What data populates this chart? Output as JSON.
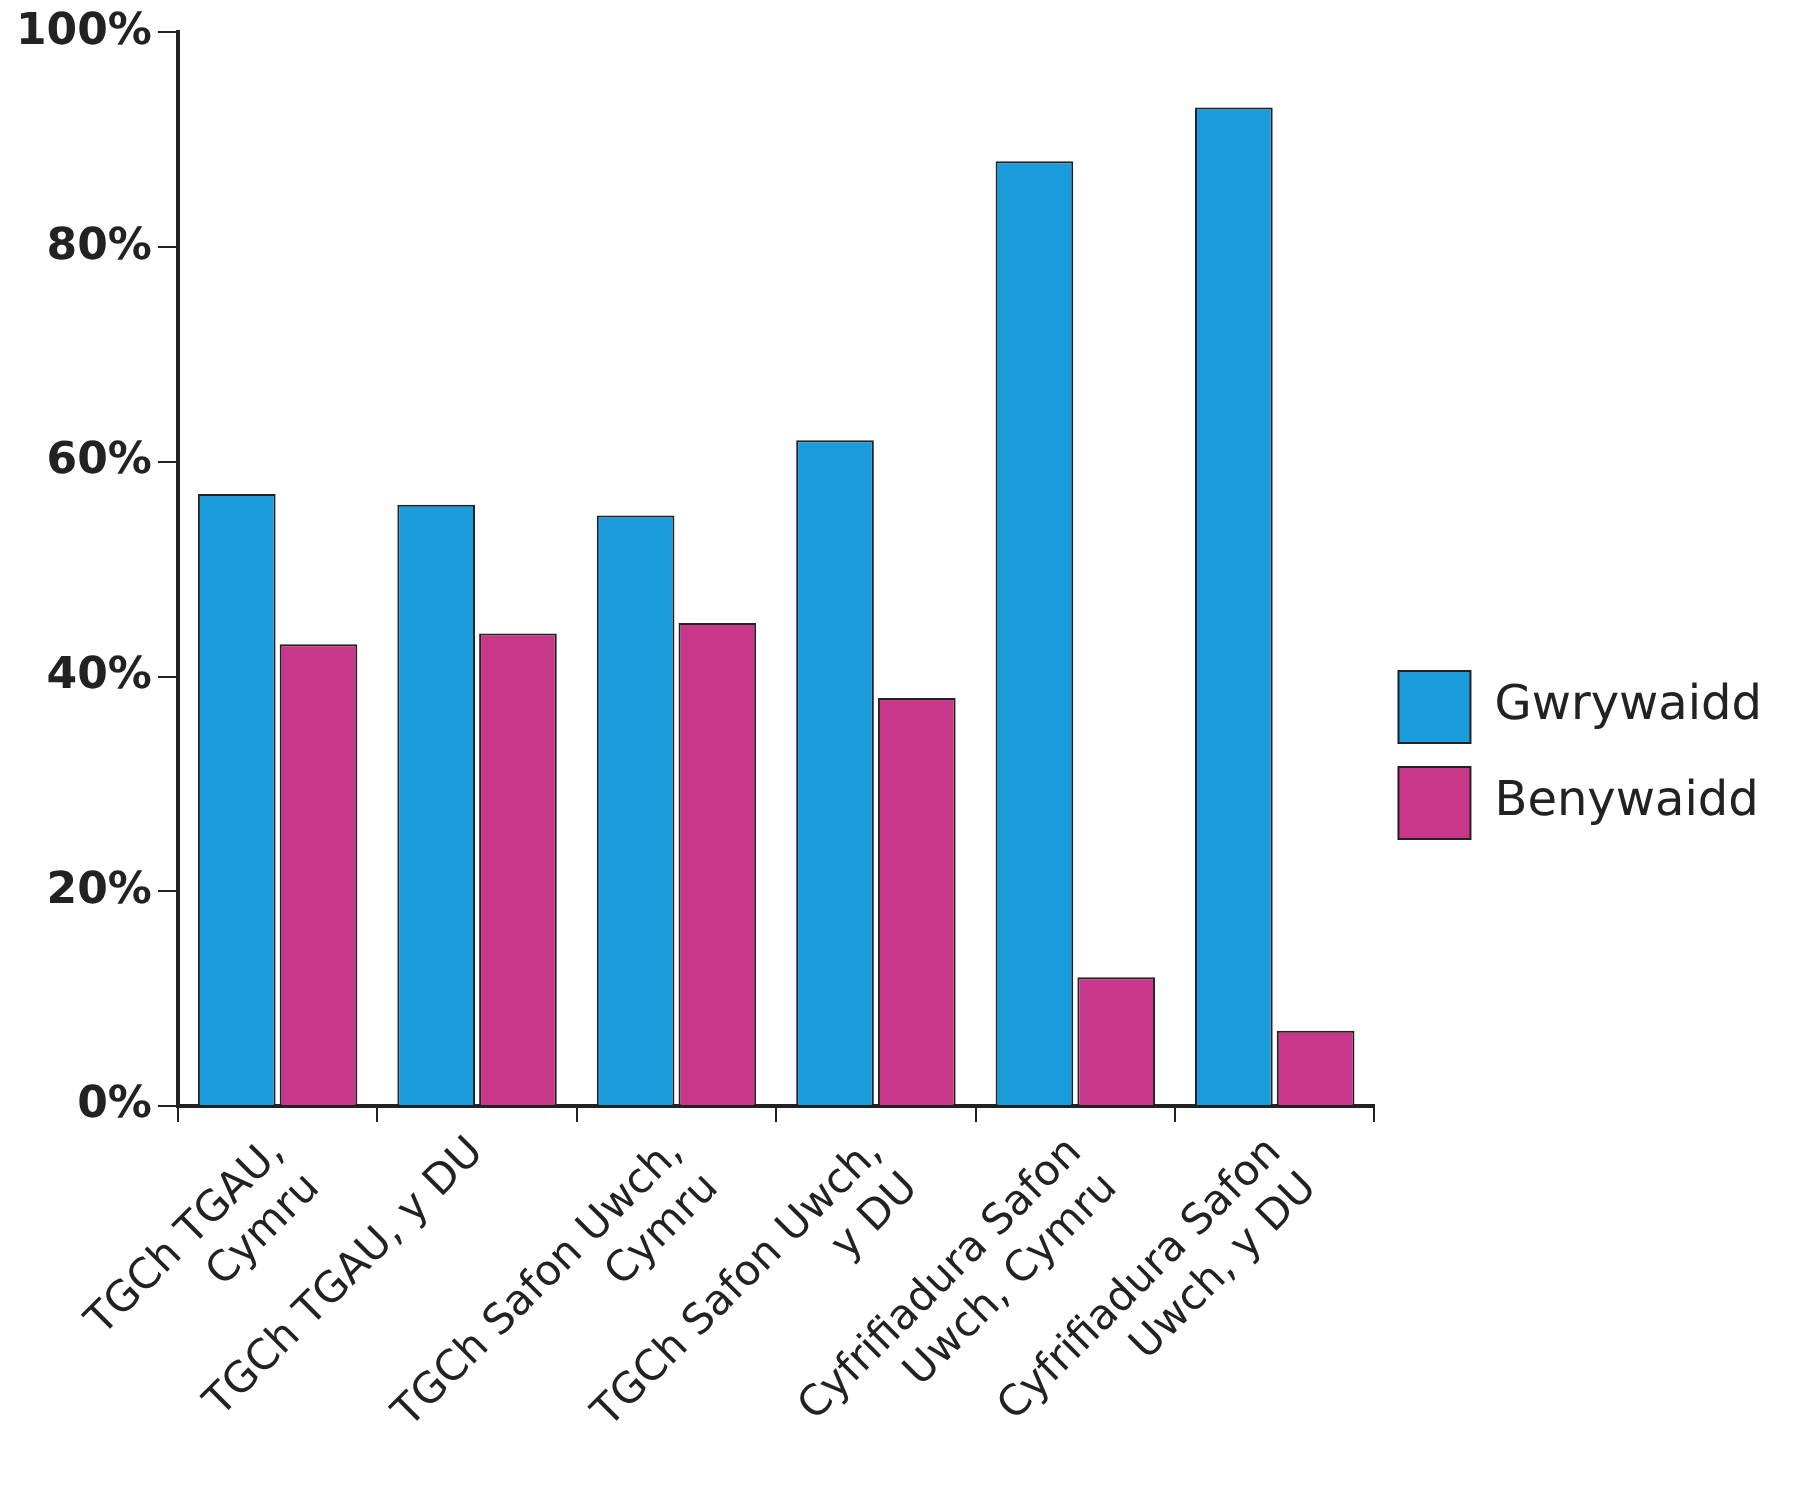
{
  "chart_data": {
    "type": "bar",
    "categories": [
      "TGCh TGAU,\nCymru",
      "TGCh TGAU, y DU",
      "TGCh Safon Uwch,\nCymru",
      "TGCh Safon Uwch,\ny DU",
      "Cyfrifiadura Safon\nUwch, Cymru",
      "Cyfrifiadura Safon\nUwch, y DU"
    ],
    "series": [
      {
        "name": "Gwrywaidd",
        "color": "#1a9bdc",
        "values": [
          57,
          56,
          55,
          62,
          88,
          93
        ]
      },
      {
        "name": "Benywaidd",
        "color": "#c9378a",
        "values": [
          43,
          44,
          45,
          38,
          12,
          7
        ]
      }
    ],
    "ylim": [
      0,
      100
    ],
    "yticks": [
      {
        "value": 0,
        "label": "0%"
      },
      {
        "value": 20,
        "label": "20%"
      },
      {
        "value": 40,
        "label": "40%"
      },
      {
        "value": 60,
        "label": "60%"
      },
      {
        "value": 80,
        "label": "80%"
      },
      {
        "value": 100,
        "label": "100%"
      }
    ],
    "grid": false,
    "legend": "right"
  }
}
